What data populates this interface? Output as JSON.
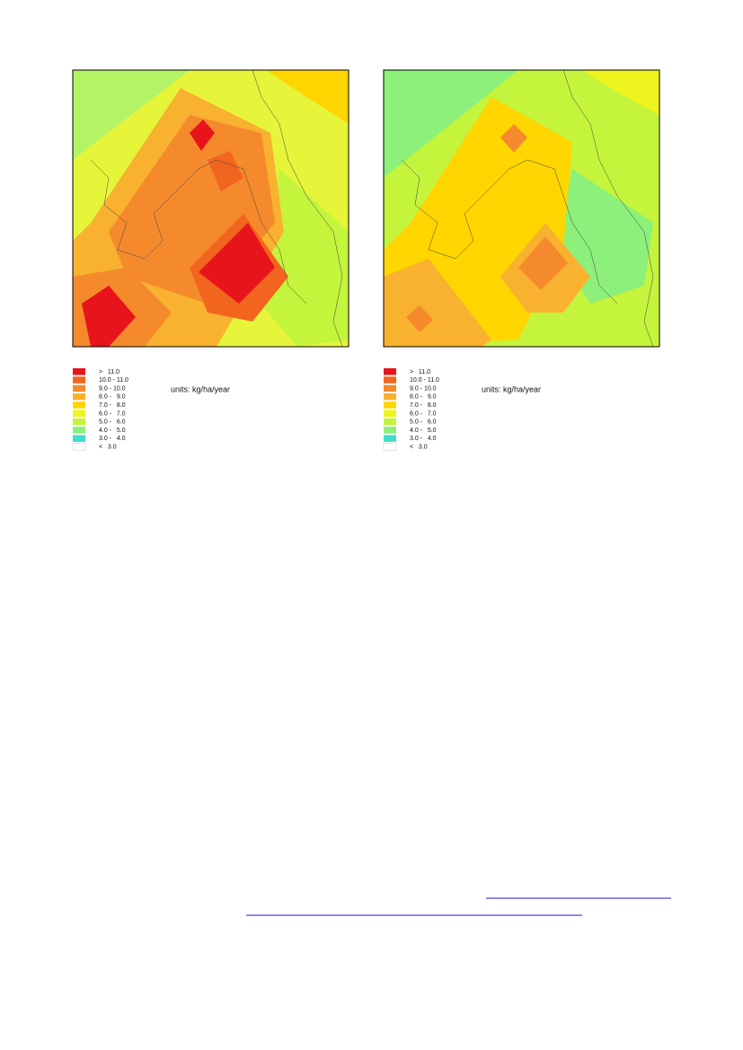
{
  "maps": [
    {
      "units": "units: kg/ha/year",
      "legend": [
        {
          "label": ">   11.0",
          "color": "#e8141b"
        },
        {
          "label": "10.0 - 11.0",
          "color": "#f2651f"
        },
        {
          "label": "9.0 - 10.0",
          "color": "#f48a2c"
        },
        {
          "label": "8.0 -   9.0",
          "color": "#f9b130"
        },
        {
          "label": "7.0 -   8.0",
          "color": "#ffd600"
        },
        {
          "label": "6.0 -   7.0",
          "color": "#eef51e"
        },
        {
          "label": "5.0 -   6.0",
          "color": "#c4f43c"
        },
        {
          "label": "4.0 -   5.0",
          "color": "#8cf07a"
        },
        {
          "label": "3.0 -   4.0",
          "color": "#3fe0c8"
        },
        {
          "label": "<   3.0",
          "color": "#ffffff"
        }
      ]
    },
    {
      "units": "units: kg/ha/year",
      "legend": [
        {
          "label": ">   11.0",
          "color": "#e8141b"
        },
        {
          "label": "10.0 - 11.0",
          "color": "#f2651f"
        },
        {
          "label": "9.0 - 10.0",
          "color": "#f48a2c"
        },
        {
          "label": "8.0 -   9.0",
          "color": "#f9b130"
        },
        {
          "label": "7.0 -   8.0",
          "color": "#ffd600"
        },
        {
          "label": "6.0 -   7.0",
          "color": "#eef51e"
        },
        {
          "label": "5.0 -   6.0",
          "color": "#c4f43c"
        },
        {
          "label": "4.0 -   5.0",
          "color": "#8cf07a"
        },
        {
          "label": "3.0 -   4.0",
          "color": "#3fe0c8"
        },
        {
          "label": "<   3.0",
          "color": "#ffffff"
        }
      ]
    }
  ]
}
